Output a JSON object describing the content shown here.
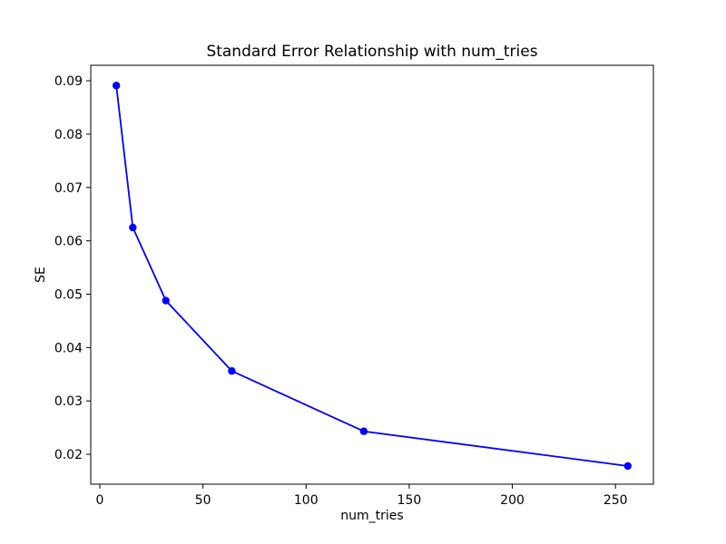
{
  "chart_data": {
    "type": "line",
    "title": "Standard Error Relationship with num_tries",
    "xlabel": "num_tries",
    "ylabel": "SE",
    "x": [
      8,
      16,
      32,
      64,
      128,
      256
    ],
    "y": [
      0.0891,
      0.0625,
      0.0488,
      0.0356,
      0.0243,
      0.0178
    ],
    "series": [
      {
        "name": "SE",
        "values": [
          0.0891,
          0.0625,
          0.0488,
          0.0356,
          0.0243,
          0.0178
        ]
      }
    ],
    "xticks": [
      0,
      50,
      100,
      150,
      200,
      250
    ],
    "yticks": [
      0.02,
      0.03,
      0.04,
      0.05,
      0.06,
      0.07,
      0.08,
      0.09
    ],
    "xlim": [
      -4.4,
      268.4
    ],
    "ylim": [
      0.0144,
      0.0929
    ],
    "line_color": "#0000ff",
    "marker": "circle",
    "grid": false,
    "legend_position": "none",
    "background_color": "#ffffff",
    "spine_color": "#000000"
  }
}
